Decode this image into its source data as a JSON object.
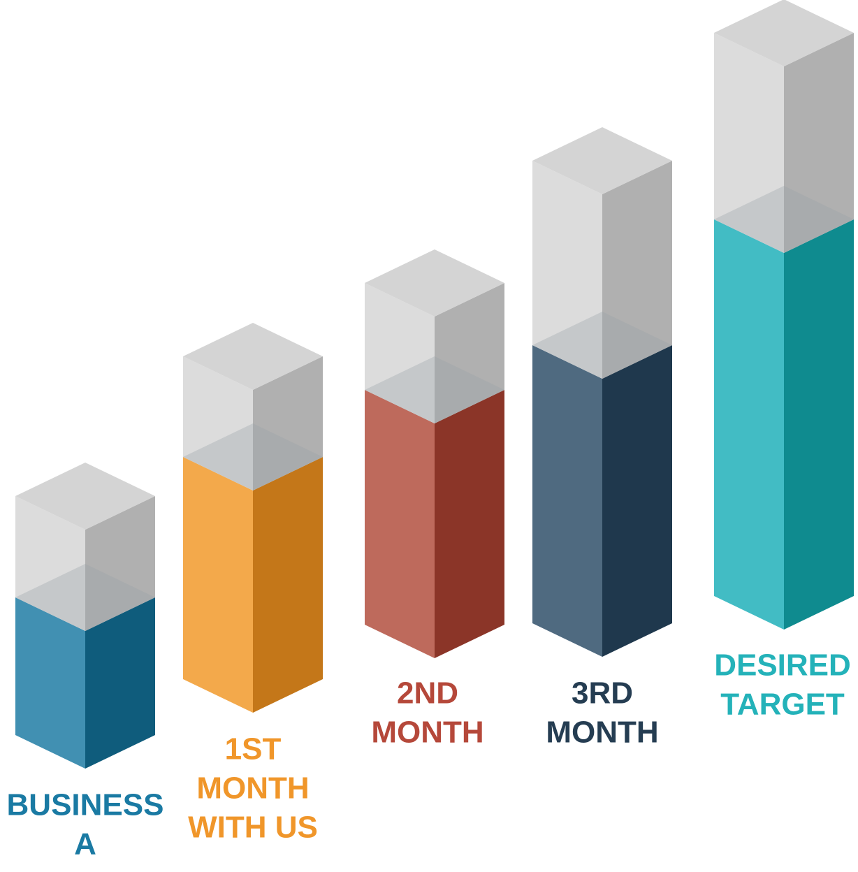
{
  "items": [
    {
      "label": [
        "BUSINESS",
        "A"
      ],
      "light": "#4190b2",
      "dark": "#0f5c7c",
      "text_color": "#1a7aa3"
    },
    {
      "label": [
        "1ST",
        "MONTH",
        "WITH US"
      ],
      "light": "#f3a94b",
      "dark": "#c47719",
      "text_color": "#f0962a"
    },
    {
      "label": [
        "2ND",
        "MONTH"
      ],
      "light": "#be6a5c",
      "dark": "#8b3528",
      "text_color": "#b5483a"
    },
    {
      "label": [
        "3RD",
        "MONTH"
      ],
      "light": "#4f6a80",
      "dark": "#1f384d",
      "text_color": "#253d52"
    },
    {
      "label": [
        "DESIRED",
        "TARGET"
      ],
      "light": "#42bcc4",
      "dark": "#0f8b8f",
      "text_color": "#24b2b9"
    }
  ]
}
